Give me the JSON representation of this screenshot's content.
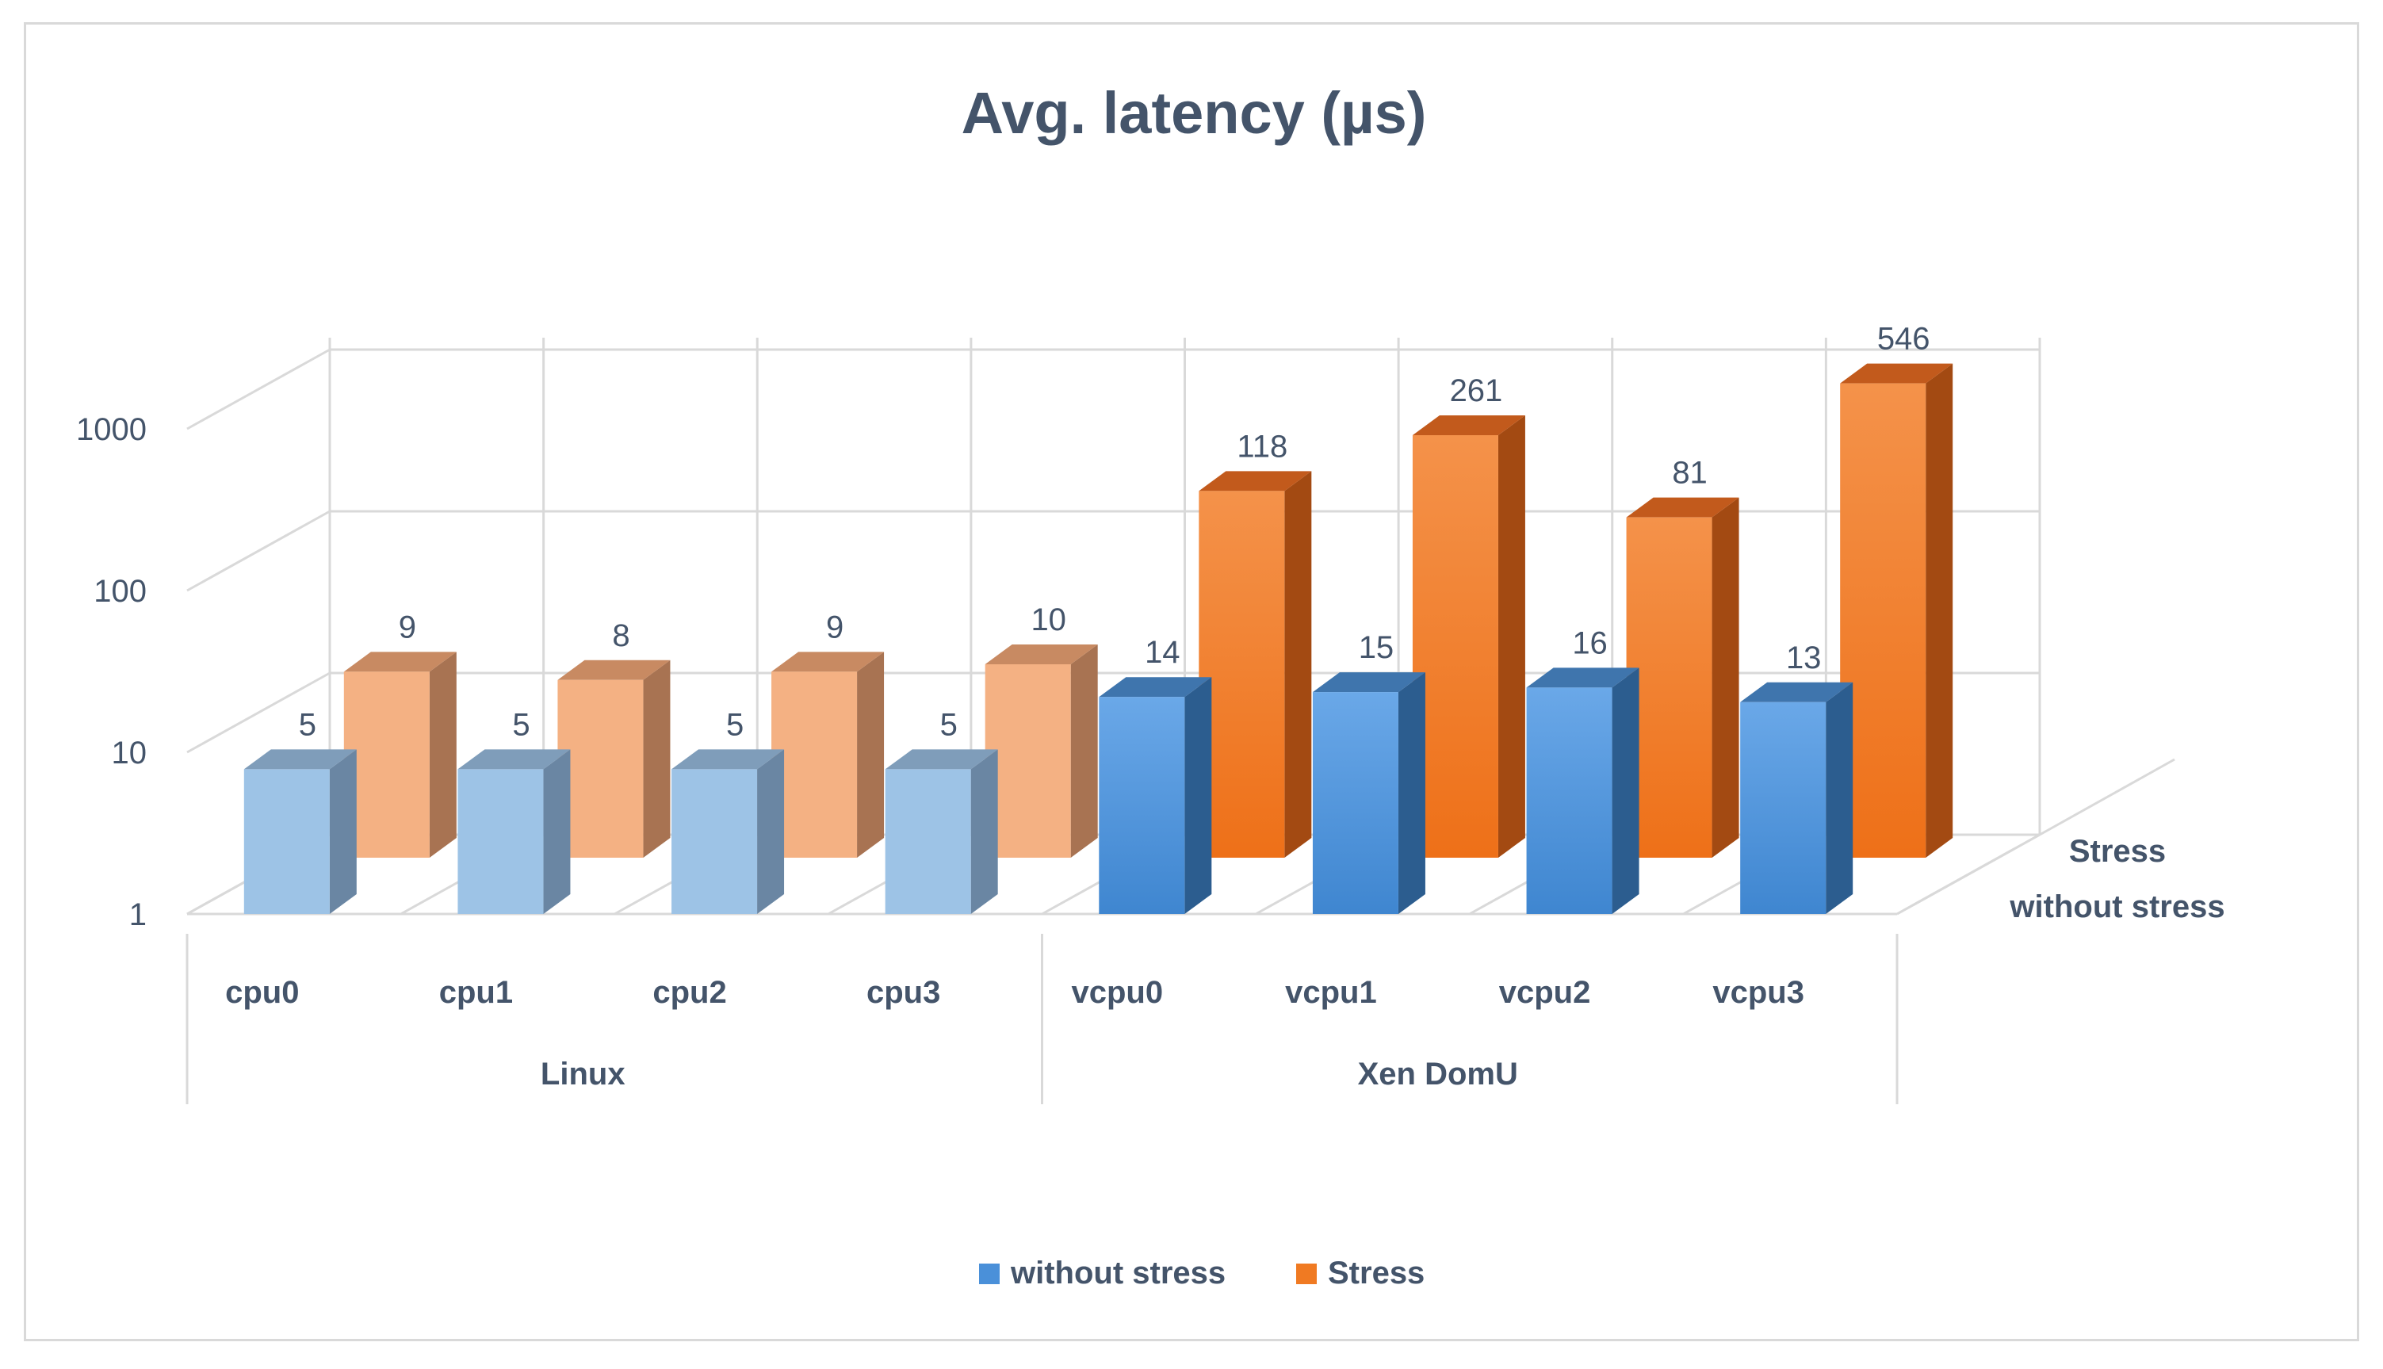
{
  "chart_data": {
    "type": "bar",
    "subtype": "3d-column",
    "title": "Avg. latency (µs)",
    "y_scale": "log",
    "ylim": [
      1,
      1000
    ],
    "y_ticks": [
      "1",
      "10",
      "100",
      "1000"
    ],
    "groups": [
      {
        "name": "Linux",
        "categories": [
          "cpu0",
          "cpu1",
          "cpu2",
          "cpu3"
        ]
      },
      {
        "name": "Xen DomU",
        "categories": [
          "vcpu0",
          "vcpu1",
          "vcpu2",
          "vcpu3"
        ]
      }
    ],
    "categories": [
      "cpu0",
      "cpu1",
      "cpu2",
      "cpu3",
      "vcpu0",
      "vcpu1",
      "vcpu2",
      "vcpu3"
    ],
    "series": [
      {
        "name": "without stress",
        "values": [
          5,
          5,
          5,
          5,
          14,
          15,
          16,
          13
        ]
      },
      {
        "name": "Stress",
        "values": [
          9,
          8,
          9,
          10,
          118,
          261,
          81,
          546
        ]
      }
    ],
    "depth_labels": [
      "Stress",
      "without stress"
    ],
    "legend": [
      "without stress",
      "Stress"
    ],
    "legend_position": "bottom",
    "colors": {
      "without_stress_linux": "#9dc3e6",
      "without_stress_xen": "#4a90d9",
      "stress_linux": "#f4b183",
      "stress_xen": "#f07a22",
      "grid": "#d9d9d9",
      "text": "#44546a"
    }
  }
}
